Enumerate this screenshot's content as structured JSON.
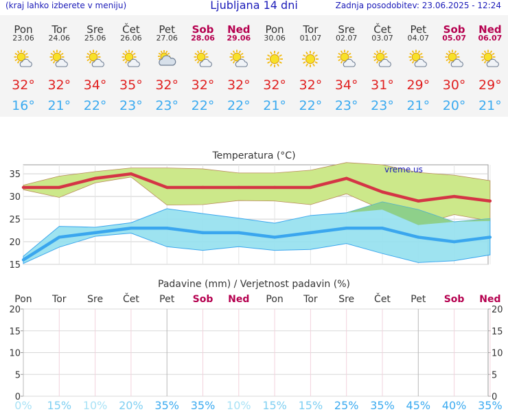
{
  "header": {
    "left_note": "(kraj lahko izberete v meniju)",
    "title": "Ljubljana 14 dni",
    "updated": "Zadnja posodobitev: 23.06.2025 - 12:24"
  },
  "forecast": [
    {
      "day": "Pon",
      "date": "23.06",
      "weekend": false,
      "icon": "sun-cloud-icon",
      "tmax": "32°",
      "tmin": "16°"
    },
    {
      "day": "Tor",
      "date": "24.06",
      "weekend": false,
      "icon": "sun-cloud-icon",
      "tmax": "32°",
      "tmin": "21°"
    },
    {
      "day": "Sre",
      "date": "25.06",
      "weekend": false,
      "icon": "sun-cloud-icon",
      "tmax": "34°",
      "tmin": "22°"
    },
    {
      "day": "Čet",
      "date": "26.06",
      "weekend": false,
      "icon": "sun-cloud-icon",
      "tmax": "35°",
      "tmin": "23°"
    },
    {
      "day": "Pet",
      "date": "27.06",
      "weekend": false,
      "icon": "cloud-sun-icon",
      "tmax": "32°",
      "tmin": "23°"
    },
    {
      "day": "Sob",
      "date": "28.06",
      "weekend": true,
      "icon": "sun-cloud-icon",
      "tmax": "32°",
      "tmin": "22°"
    },
    {
      "day": "Ned",
      "date": "29.06",
      "weekend": true,
      "icon": "sun-cloud-icon",
      "tmax": "32°",
      "tmin": "22°"
    },
    {
      "day": "Pon",
      "date": "30.06",
      "weekend": false,
      "icon": "sun-icon",
      "tmax": "32°",
      "tmin": "21°"
    },
    {
      "day": "Tor",
      "date": "01.07",
      "weekend": false,
      "icon": "sun-icon",
      "tmax": "32°",
      "tmin": "22°"
    },
    {
      "day": "Sre",
      "date": "02.07",
      "weekend": false,
      "icon": "sun-cloud-icon",
      "tmax": "34°",
      "tmin": "23°"
    },
    {
      "day": "Čet",
      "date": "03.07",
      "weekend": false,
      "icon": "sun-cloud-icon",
      "tmax": "31°",
      "tmin": "23°"
    },
    {
      "day": "Pet",
      "date": "04.07",
      "weekend": false,
      "icon": "sun-cloud-icon",
      "tmax": "29°",
      "tmin": "21°"
    },
    {
      "day": "Sob",
      "date": "05.07",
      "weekend": true,
      "icon": "sun-cloud-icon",
      "tmax": "30°",
      "tmin": "20°"
    },
    {
      "day": "Ned",
      "date": "06.07",
      "weekend": true,
      "icon": "sun-cloud-icon",
      "tmax": "29°",
      "tmin": "21°"
    }
  ],
  "watermark": "vreme.us",
  "colors": {
    "max_line": "#d43545",
    "max_band": "#cce88a",
    "min_line": "#3aa6ee",
    "min_band": "#93e0ee",
    "overlap": "#8ccd7a",
    "weekend": "#b5004f",
    "title_blue": "#1a1ab8"
  },
  "chart_data": [
    {
      "type": "line",
      "title": "Temperatura (°C)",
      "x": [
        "Pon",
        "Tor",
        "Sre",
        "Čet",
        "Pet",
        "Sob",
        "Ned",
        "Pon",
        "Tor",
        "Sre",
        "Čet",
        "Pet",
        "Sob",
        "Ned"
      ],
      "ylim": [
        15,
        37
      ],
      "yticks": [
        "15",
        "20",
        "25",
        "30",
        "35"
      ],
      "grid": true,
      "series": [
        {
          "role": "max",
          "values": [
            32,
            32,
            34,
            35,
            32,
            32,
            32,
            32,
            32,
            34,
            31,
            29,
            30,
            29
          ]
        },
        {
          "role": "max_upper",
          "values": [
            32.5,
            34.5,
            35.5,
            36.3,
            36.3,
            36.1,
            35.2,
            35.2,
            35.8,
            37.5,
            37,
            35.3,
            34.7,
            33.5
          ]
        },
        {
          "role": "max_lower",
          "values": [
            31.5,
            29.8,
            33,
            34.3,
            28.1,
            28.2,
            29.1,
            29,
            28.2,
            30.6,
            27.1,
            23.7,
            26,
            24.6
          ]
        },
        {
          "role": "min",
          "values": [
            16,
            21,
            22,
            23,
            23,
            22,
            22,
            21,
            22,
            23,
            23,
            21,
            20,
            21
          ]
        },
        {
          "role": "min_upper",
          "values": [
            16.8,
            23.4,
            23.2,
            24.2,
            27.3,
            26.2,
            25.2,
            24.1,
            25.8,
            26.4,
            28.8,
            27.1,
            24.4,
            25.1
          ]
        },
        {
          "role": "min_lower",
          "values": [
            15.2,
            18.8,
            21.2,
            21.9,
            18.9,
            18.1,
            18.9,
            18.1,
            18.3,
            19.6,
            17.4,
            15.4,
            15.8,
            17.1
          ]
        }
      ]
    },
    {
      "type": "bar",
      "title": "Padavine (mm) / Verjetnost padavin (%)",
      "categories": [
        "Pon",
        "Tor",
        "Sre",
        "Čet",
        "Pet",
        "Sob",
        "Ned",
        "Pon",
        "Tor",
        "Sre",
        "Čet",
        "Pet",
        "Sob",
        "Ned"
      ],
      "weekend": [
        false,
        false,
        false,
        false,
        false,
        true,
        true,
        false,
        false,
        false,
        false,
        false,
        true,
        true
      ],
      "values": [
        0,
        0,
        0,
        0,
        0,
        0,
        0,
        0,
        0,
        0,
        0,
        0,
        0,
        0
      ],
      "probability": [
        "0%",
        "15%",
        "10%",
        "20%",
        "35%",
        "35%",
        "10%",
        "15%",
        "15%",
        "25%",
        "35%",
        "45%",
        "40%",
        "35%"
      ],
      "probability_colors": [
        "#a8e2f6",
        "#7ecff2",
        "#a8e2f6",
        "#7ecff2",
        "#3aaaf0",
        "#3aaaf0",
        "#a8e2f6",
        "#7ecff2",
        "#7ecff2",
        "#3aaaf0",
        "#3aaaf0",
        "#3aaaf0",
        "#3aaaf0",
        "#3aaaf0"
      ],
      "ylim": [
        0,
        20
      ],
      "yticks": [
        "0",
        "5",
        "10",
        "15",
        "20"
      ],
      "grid": true
    }
  ]
}
